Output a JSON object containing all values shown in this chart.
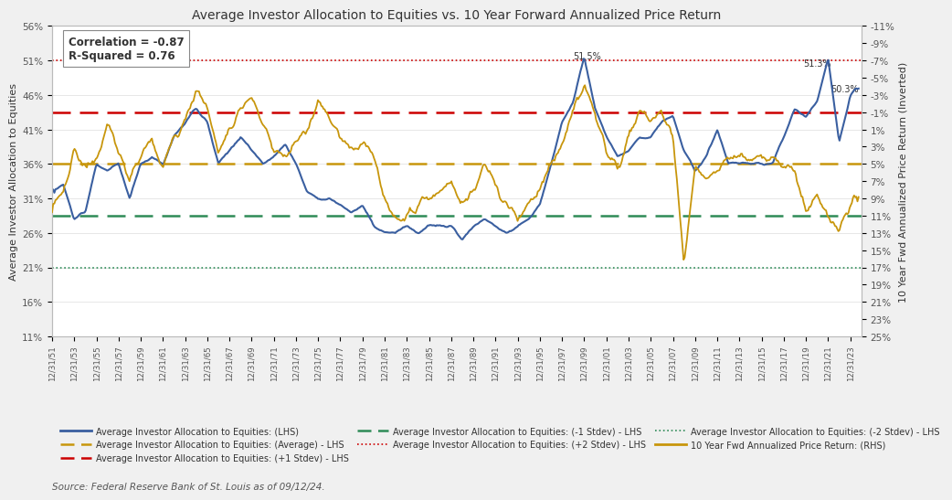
{
  "title": "Average Investor Allocation to Equities vs. 10 Year Forward Annualized Price Return",
  "ylabel_left": "Average Investor Allocation to Equities",
  "ylabel_right": "10 Year Fwd Annualized Price Return (Inverted)",
  "source": "Source: Federal Reserve Bank of St. Louis as of 09/12/24.",
  "corr_text": "Correlation = -0.87\nR-Squared = 0.76",
  "lhs_ylim": [
    11,
    56
  ],
  "rhs_ylim": [
    25,
    -11
  ],
  "lhs_yticks": [
    11,
    16,
    21,
    26,
    31,
    36,
    41,
    46,
    51,
    56
  ],
  "rhs_yticks": [
    25,
    23,
    21,
    19,
    17,
    15,
    13,
    11,
    9,
    7,
    5,
    3,
    1,
    -1,
    -3,
    -5,
    -7,
    -9,
    -11
  ],
  "avg_line": 36.0,
  "plus1std_line": 43.5,
  "minus1std_line": 28.5,
  "plus2std_line": 51.0,
  "minus2std_line": 21.0,
  "bg_color": "#f0f0f0",
  "plot_bg_color": "#ffffff",
  "blue_color": "#3a5fa0",
  "gold_color": "#c8960c",
  "avg_color": "#c8960c",
  "plus1std_color": "#cc0000",
  "minus1std_color": "#2e8b57",
  "plus2std_color": "#cc0000",
  "minus2std_color": "#2e8b57",
  "legend_labels": [
    "Average Investor Allocation to Equities: (LHS)",
    "Average Investor Allocation to Equities: (Average) - LHS",
    "Average Investor Allocation to Equities: (+1 Stdev) - LHS",
    "Average Investor Allocation to Equities: (-1 Stdev) - LHS",
    "Average Investor Allocation to Equities: (+2 Stdev) - LHS",
    "Average Investor Allocation to Equities: (-2 Stdev) - LHS",
    "10 Year Fwd Annualized Price Return: (RHS)"
  ]
}
